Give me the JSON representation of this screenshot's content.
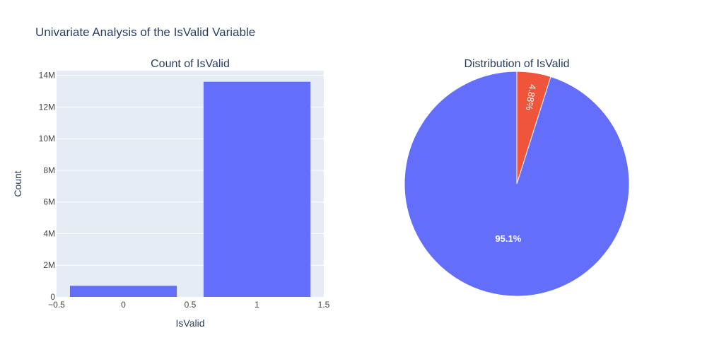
{
  "figure": {
    "title": "Univariate Analysis of the IsValid Variable"
  },
  "colors": {
    "plot_bg": "#E5ECF6",
    "grid": "#ffffff",
    "text": "#2a3f5f",
    "tick_text": "#444444",
    "bar": "#636EFA",
    "pie_valid": "#636EFA",
    "pie_invalid": "#EF553B"
  },
  "chart_data": [
    {
      "type": "bar",
      "title": "Count of IsValid",
      "xlabel": "IsValid",
      "ylabel": "Count",
      "x": [
        0,
        1
      ],
      "values": [
        700000,
        13600000
      ],
      "xlim": [
        -0.5,
        1.5
      ],
      "ylim": [
        0,
        14300000
      ],
      "xticks": [
        -0.5,
        0,
        0.5,
        1,
        1.5
      ],
      "xtick_labels": [
        "−0.5",
        "0",
        "0.5",
        "1",
        "1.5"
      ],
      "yticks": [
        0,
        2000000,
        4000000,
        6000000,
        8000000,
        10000000,
        12000000,
        14000000
      ],
      "ytick_labels": [
        "0",
        "2M",
        "4M",
        "6M",
        "8M",
        "10M",
        "12M",
        "14M"
      ],
      "grid": true
    },
    {
      "type": "pie",
      "title": "Distribution of IsValid",
      "slices": [
        {
          "label": "1",
          "value": 95.1,
          "text": "95.1%",
          "color": "#636EFA"
        },
        {
          "label": "0",
          "value": 4.88,
          "text": "4.88%",
          "color": "#EF553B"
        }
      ]
    }
  ]
}
